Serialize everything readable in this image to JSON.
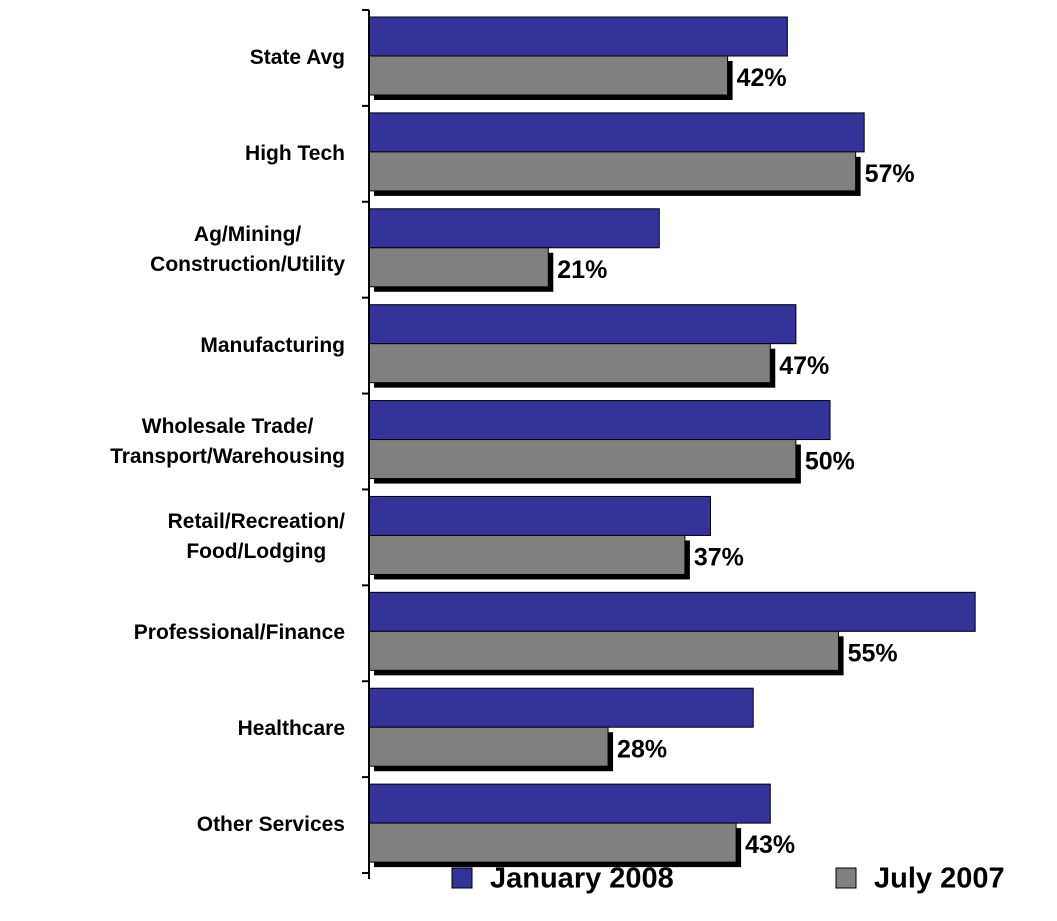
{
  "chart_data": {
    "type": "hbar",
    "categories": [
      "State Avg",
      "High Tech",
      "Ag/Mining/\nConstruction/Utility",
      "Manufacturing",
      "Wholesale Trade/\nTransport/Warehousing",
      "Retail/Recreation/\nFood/Lodging",
      "Professional/Finance",
      "Healthcare",
      "Other Services"
    ],
    "series": [
      {
        "name": "January 2008",
        "color": "#333399",
        "values": [
          49,
          58,
          34,
          50,
          54,
          40,
          71,
          45,
          47
        ]
      },
      {
        "name": "July 2007",
        "color": "#808080",
        "values": [
          42,
          57,
          21,
          47,
          50,
          37,
          55,
          28,
          43
        ],
        "value_labels": [
          "42%",
          "57%",
          "21%",
          "47%",
          "50%",
          "37%",
          "55%",
          "28%",
          "43%"
        ]
      }
    ],
    "xlim": [
      0,
      80
    ],
    "legend": "bottom"
  }
}
